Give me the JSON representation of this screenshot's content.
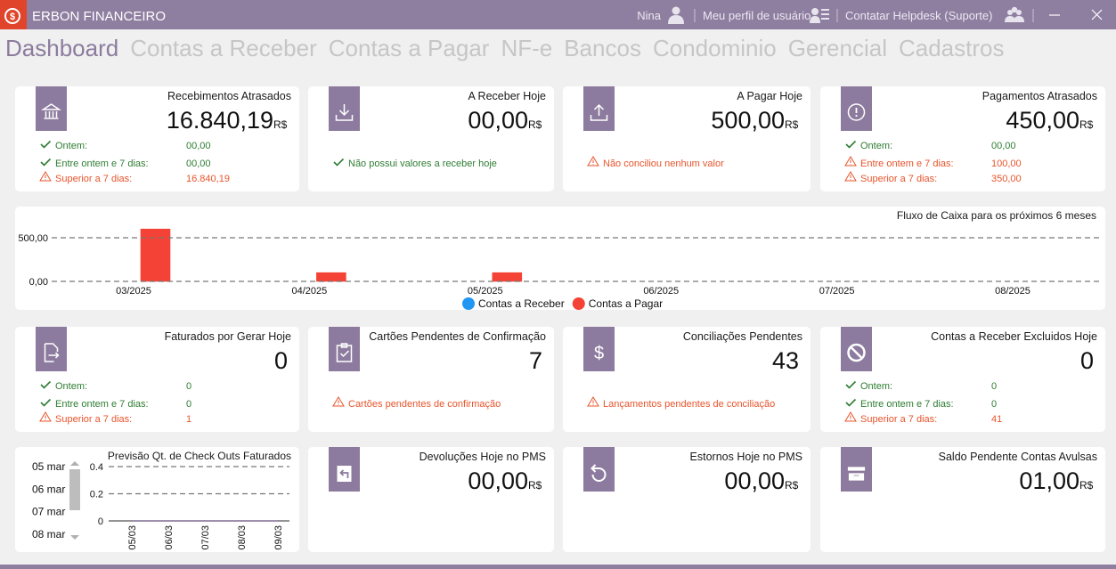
{
  "title_bar": {
    "app_name": "ERBON FINANCEIRO",
    "user": "Nina",
    "profile": "Meu perfil de usuário",
    "helpdesk": "Contatar Helpdesk (Suporte)"
  },
  "nav": {
    "items": [
      "Dashboard",
      "Contas a Receber",
      "Contas a Pagar",
      "NF-e",
      "Bancos",
      "Condominio",
      "Gerencial",
      "Cadastros"
    ],
    "active": 0
  },
  "cards": [
    {
      "title": "Recebimentos Atrasados",
      "amount": "16.840,19",
      "currency": "R$",
      "lines": [
        {
          "label": "Ontem:",
          "value": "00,00",
          "status": "ok"
        },
        {
          "label": "Entre ontem e 7 dias:",
          "value": "00,00",
          "status": "ok"
        },
        {
          "label": "Superior a 7 dias:",
          "value": "16.840,19",
          "status": "warning"
        }
      ]
    },
    {
      "title": "A Receber Hoje",
      "amount": "00,00",
      "currency": "R$",
      "note": {
        "text": "Não possui valores a receber hoje",
        "status": "ok"
      }
    },
    {
      "title": "A Pagar Hoje",
      "amount": "500,00",
      "currency": "R$",
      "note": {
        "text": "Não conciliou nenhum valor",
        "status": "warning"
      }
    },
    {
      "title": "Pagamentos Atrasados",
      "amount": "450,00",
      "currency": "R$",
      "lines": [
        {
          "label": "Ontem:",
          "value": "00,00",
          "status": "ok"
        },
        {
          "label": "Entre ontem e 7 dias:",
          "value": "100,00",
          "status": "warning"
        },
        {
          "label": "Superior a 7 dias:",
          "value": "350,00",
          "status": "warning"
        }
      ]
    },
    {
      "title": "Faturados por Gerar Hoje",
      "amount": "0",
      "lines": [
        {
          "label": "Ontem:",
          "value": "0",
          "status": "ok"
        },
        {
          "label": "Entre ontem e 7 dias:",
          "value": "0",
          "status": "ok"
        },
        {
          "label": "Superior a 7 dias:",
          "value": "1",
          "status": "warning"
        }
      ]
    },
    {
      "title": "Cartões Pendentes de Confirmação",
      "amount": "7",
      "note": {
        "text": "Cartões pendentes de confirmação",
        "status": "warning"
      }
    },
    {
      "title": "Conciliações Pendentes",
      "amount": "43",
      "note": {
        "text": "Lançamentos pendentes de conciliação",
        "status": "warning"
      }
    },
    {
      "title": "Contas a Receber Excluidos Hoje",
      "amount": "0",
      "lines": [
        {
          "label": "Ontem:",
          "value": "0",
          "status": "ok"
        },
        {
          "label": "Entre ontem e 7 dias:",
          "value": "0",
          "status": "ok"
        },
        {
          "label": "Superior a 7 dias:",
          "value": "41",
          "status": "warning"
        }
      ]
    },
    {
      "title": "Devoluções Hoje no PMS",
      "amount": "00,00",
      "currency": "R$"
    },
    {
      "title": "Estornos Hoje no PMS",
      "amount": "00,00",
      "currency": "R$"
    },
    {
      "title": "Saldo Pendente Contas Avulsas",
      "amount": "01,00",
      "currency": "R$"
    }
  ],
  "checkout_dates": [
    "05 mar",
    "06 mar",
    "07 mar",
    "08 mar"
  ],
  "chart_data": [
    {
      "type": "bar",
      "title": "Fluxo de Caixa para os próximos 6 meses",
      "categories": [
        "03/2025",
        "04/2025",
        "05/2025",
        "06/2025",
        "07/2025",
        "08/2025"
      ],
      "series": [
        {
          "name": "Contas a Receber",
          "color": "#2196f3",
          "values": [
            0,
            0,
            0,
            0,
            0,
            0
          ]
        },
        {
          "name": "Contas a Pagar",
          "color": "#f44336",
          "values": [
            600,
            100,
            100,
            0,
            0,
            0
          ]
        }
      ],
      "ylim": [
        0,
        800
      ],
      "yticks": [
        {
          "value": 0,
          "label": "0,00"
        },
        {
          "value": 500,
          "label": "500,00"
        }
      ],
      "grid": true,
      "legend": "bottom"
    },
    {
      "type": "line",
      "title": "Previsão Qt. de Check Outs Faturados",
      "categories": [
        "05/03",
        "06/03",
        "07/03",
        "08/03",
        "09/03"
      ],
      "values": [
        0,
        0,
        0,
        0,
        0
      ],
      "color": "#8c7b9e",
      "ylim": [
        0,
        0.4
      ],
      "yticks": [
        0,
        0.2,
        0.4
      ],
      "grid": true
    }
  ]
}
